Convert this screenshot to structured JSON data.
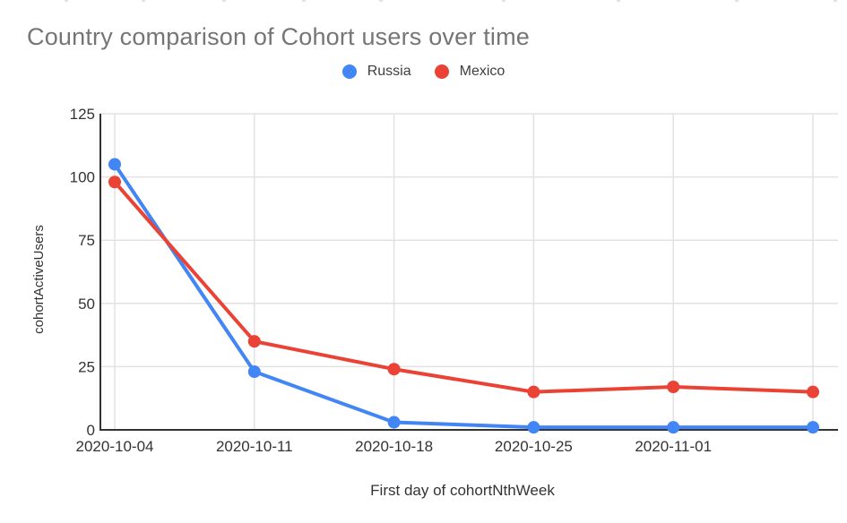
{
  "title": "Country comparison of Cohort users over time",
  "chart_data": {
    "type": "line",
    "title": "Country comparison of Cohort users over time",
    "xlabel": "First day of cohortNthWeek",
    "ylabel": "cohortActiveUsers",
    "categories": [
      "2020-10-04",
      "2020-10-11",
      "2020-10-18",
      "2020-10-25",
      "2020-11-01",
      ""
    ],
    "x_tick_labels": [
      "2020-10-04",
      "2020-10-11",
      "2020-10-18",
      "2020-10-25",
      "2020-11-01"
    ],
    "y_ticks": [
      0,
      25,
      50,
      75,
      100,
      125
    ],
    "ylim": [
      0,
      125
    ],
    "grid": true,
    "legend_position": "top-center",
    "series": [
      {
        "name": "Russia",
        "color": "#4285F4",
        "values": [
          105,
          23,
          3,
          1,
          1,
          1
        ]
      },
      {
        "name": "Mexico",
        "color": "#EA4335",
        "values": [
          98,
          35,
          24,
          15,
          17,
          15
        ]
      }
    ]
  },
  "colors": {
    "background": "#ffffff",
    "title_text": "#757575",
    "axis_text": "#333333",
    "axis_line": "#333333",
    "grid_line": "#e2e2e2"
  }
}
